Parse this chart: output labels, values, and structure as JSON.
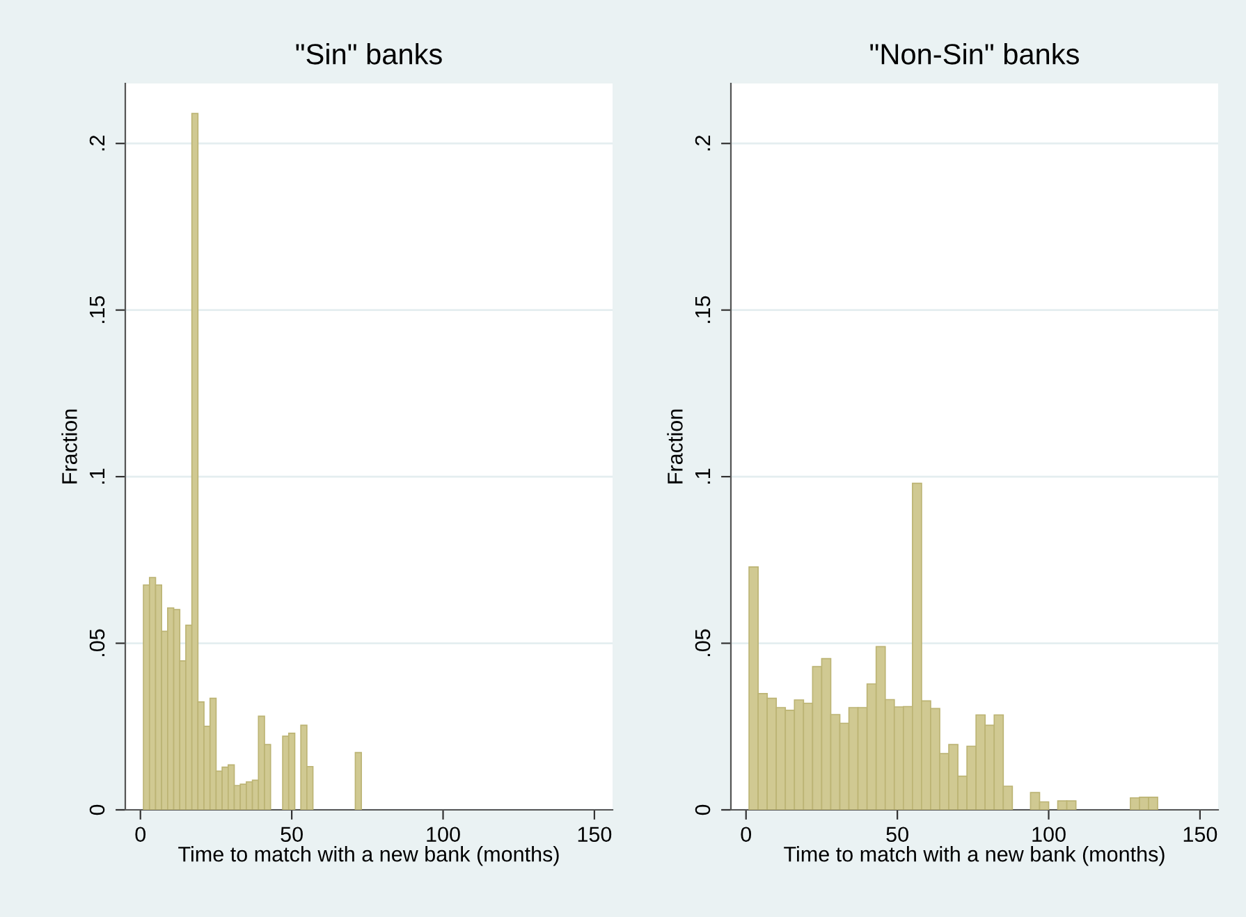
{
  "chart_data": [
    {
      "type": "histogram",
      "title": "\"Sin\" banks",
      "xlabel": "Time to match with a new bank (months)",
      "ylabel": "Fraction",
      "color": "#d0c992",
      "bins": [
        1,
        3,
        5,
        7,
        9,
        11,
        13,
        15,
        17,
        19,
        21,
        23,
        25,
        27,
        29,
        31,
        33,
        35,
        37,
        39,
        41,
        43,
        45,
        47,
        49,
        51,
        53,
        55,
        57,
        59,
        61,
        63,
        65,
        67,
        69,
        71,
        73
      ],
      "values": [
        0.0675,
        0.0697,
        0.0675,
        0.0536,
        0.0606,
        0.0601,
        0.0447,
        0.0554,
        0.209,
        0.0324,
        0.0251,
        0.0335,
        0.0116,
        0.0128,
        0.0135,
        0.0073,
        0.0077,
        0.0084,
        0.0089,
        0.0281,
        0.0196,
        0,
        0,
        0.0221,
        0.023,
        0,
        0.0254,
        0.013,
        0,
        0,
        0,
        0,
        0,
        0,
        0,
        0.0172
      ],
      "xlim": [
        -5,
        156
      ],
      "xticks": [
        0,
        50,
        100,
        150
      ],
      "ylim": [
        0,
        0.218
      ],
      "yticks": [
        0,
        {
          "value": 0.05,
          "label": ".05"
        },
        {
          "value": 0.1,
          "label": ".1"
        },
        {
          "value": 0.15,
          "label": ".15"
        },
        {
          "value": 0.2,
          "label": ".2"
        }
      ],
      "grid": "y"
    },
    {
      "type": "histogram",
      "title": "\"Non-Sin\" banks",
      "xlabel": "Time to match with a new bank (months)",
      "ylabel": "Fraction",
      "color": "#d0c992",
      "bins": [
        1,
        4,
        7,
        10,
        13,
        16,
        19,
        22,
        25,
        28,
        31,
        34,
        37,
        40,
        43,
        46,
        49,
        52,
        55,
        58,
        61,
        64,
        67,
        70,
        73,
        76,
        79,
        82,
        85,
        88,
        91,
        94,
        97,
        100,
        103,
        106,
        109,
        112,
        115,
        118,
        121,
        124,
        127,
        130,
        133,
        136
      ],
      "values": [
        0.0729,
        0.0349,
        0.0335,
        0.0307,
        0.0299,
        0.033,
        0.032,
        0.043,
        0.0454,
        0.0286,
        0.026,
        0.0307,
        0.0307,
        0.0378,
        0.049,
        0.0331,
        0.0309,
        0.031,
        0.098,
        0.0327,
        0.0304,
        0.0169,
        0.0196,
        0.0101,
        0.0191,
        0.0285,
        0.0254,
        0.0285,
        0.0071,
        0,
        0,
        0.0052,
        0.0024,
        0,
        0.0027,
        0.0027,
        0,
        0,
        0,
        0,
        0,
        0,
        0.0036,
        0.0038,
        0.0038
      ],
      "xlim": [
        -5,
        156
      ],
      "xticks": [
        0,
        50,
        100,
        150
      ],
      "ylim": [
        0,
        0.218
      ],
      "yticks": [
        0,
        {
          "value": 0.05,
          "label": ".05"
        },
        {
          "value": 0.1,
          "label": ".1"
        },
        {
          "value": 0.15,
          "label": ".15"
        },
        {
          "value": 0.2,
          "label": ".2"
        }
      ],
      "grid": "y"
    }
  ]
}
